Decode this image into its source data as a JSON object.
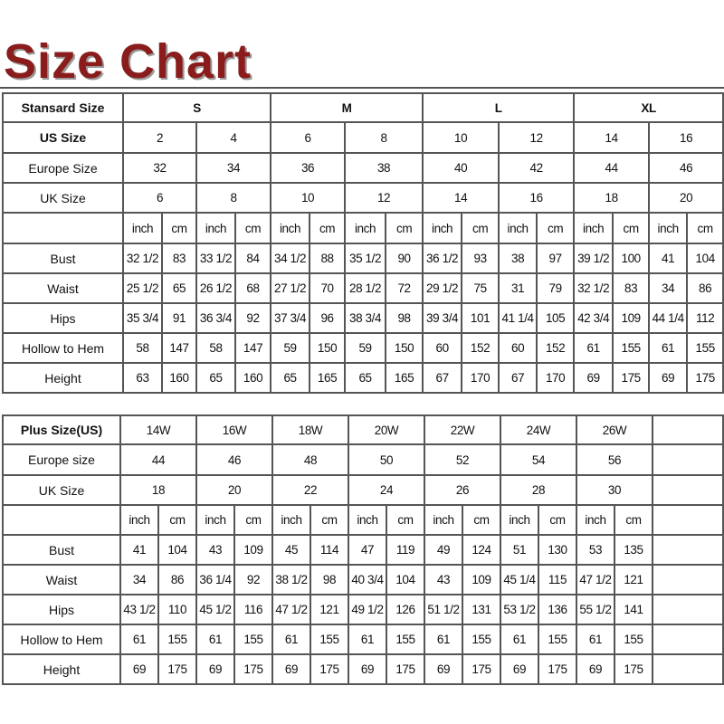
{
  "title": "Size Chart",
  "colors": {
    "title": "#8a1c1c",
    "border": "#555555"
  },
  "standard": {
    "header_label": "Stansard Size",
    "groups": [
      "S",
      "M",
      "L",
      "XL"
    ],
    "us_label": "US Size",
    "us": [
      "2",
      "4",
      "6",
      "8",
      "10",
      "12",
      "14",
      "16"
    ],
    "europe_label": "Europe Size",
    "europe": [
      "32",
      "34",
      "36",
      "38",
      "40",
      "42",
      "44",
      "46"
    ],
    "uk_label": "UK Size",
    "uk": [
      "6",
      "8",
      "10",
      "12",
      "14",
      "16",
      "18",
      "20"
    ],
    "unit_inch": "inch",
    "unit_cm": "cm",
    "measurements": [
      {
        "label": "Bust",
        "values": [
          "32 1/2",
          "83",
          "33 1/2",
          "84",
          "34 1/2",
          "88",
          "35 1/2",
          "90",
          "36 1/2",
          "93",
          "38",
          "97",
          "39 1/2",
          "100",
          "41",
          "104"
        ]
      },
      {
        "label": "Waist",
        "values": [
          "25 1/2",
          "65",
          "26 1/2",
          "68",
          "27 1/2",
          "70",
          "28 1/2",
          "72",
          "29 1/2",
          "75",
          "31",
          "79",
          "32 1/2",
          "83",
          "34",
          "86"
        ]
      },
      {
        "label": "Hips",
        "values": [
          "35 3/4",
          "91",
          "36 3/4",
          "92",
          "37 3/4",
          "96",
          "38 3/4",
          "98",
          "39 3/4",
          "101",
          "41 1/4",
          "105",
          "42 3/4",
          "109",
          "44 1/4",
          "112"
        ]
      },
      {
        "label": "Hollow to Hem",
        "values": [
          "58",
          "147",
          "58",
          "147",
          "59",
          "150",
          "59",
          "150",
          "60",
          "152",
          "60",
          "152",
          "61",
          "155",
          "61",
          "155"
        ]
      },
      {
        "label": "Height",
        "values": [
          "63",
          "160",
          "65",
          "160",
          "65",
          "165",
          "65",
          "165",
          "67",
          "170",
          "67",
          "170",
          "69",
          "175",
          "69",
          "175"
        ]
      }
    ]
  },
  "plus": {
    "header_label": "Plus Size(US)",
    "sizes": [
      "14W",
      "16W",
      "18W",
      "20W",
      "22W",
      "24W",
      "26W"
    ],
    "europe_label": "Europe size",
    "europe": [
      "44",
      "46",
      "48",
      "50",
      "52",
      "54",
      "56"
    ],
    "uk_label": "UK Size",
    "uk": [
      "18",
      "20",
      "22",
      "24",
      "26",
      "28",
      "30"
    ],
    "unit_inch": "inch",
    "unit_cm": "cm",
    "measurements": [
      {
        "label": "Bust",
        "values": [
          "41",
          "104",
          "43",
          "109",
          "45",
          "114",
          "47",
          "119",
          "49",
          "124",
          "51",
          "130",
          "53",
          "135"
        ]
      },
      {
        "label": "Waist",
        "values": [
          "34",
          "86",
          "36 1/4",
          "92",
          "38 1/2",
          "98",
          "40 3/4",
          "104",
          "43",
          "109",
          "45 1/4",
          "115",
          "47 1/2",
          "121"
        ]
      },
      {
        "label": "Hips",
        "values": [
          "43 1/2",
          "110",
          "45 1/2",
          "116",
          "47 1/2",
          "121",
          "49 1/2",
          "126",
          "51 1/2",
          "131",
          "53 1/2",
          "136",
          "55 1/2",
          "141"
        ]
      },
      {
        "label": "Hollow to Hem",
        "values": [
          "61",
          "155",
          "61",
          "155",
          "61",
          "155",
          "61",
          "155",
          "61",
          "155",
          "61",
          "155",
          "61",
          "155"
        ]
      },
      {
        "label": "Height",
        "values": [
          "69",
          "175",
          "69",
          "175",
          "69",
          "175",
          "69",
          "175",
          "69",
          "175",
          "69",
          "175",
          "69",
          "175"
        ]
      }
    ]
  }
}
